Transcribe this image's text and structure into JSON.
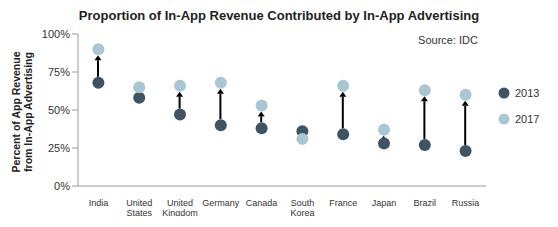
{
  "chart_data": {
    "type": "scatter",
    "title": "Proportion of In-App Revenue Contributed by In-App Advertising",
    "ylabel": "Percent of App Revenue from In-App Advertising",
    "annotations": [
      "Source: IDC"
    ],
    "categories": [
      "India",
      "United States",
      "United Kingdom",
      "Germany",
      "Canada",
      "South Korea",
      "France",
      "Japan",
      "Brazil",
      "Russia"
    ],
    "series": [
      {
        "name": "2013",
        "color": "#3f5463",
        "values": [
          68,
          58,
          47,
          40,
          38,
          36,
          34,
          28,
          27,
          23
        ]
      },
      {
        "name": "2017",
        "color": "#a8c6d4",
        "values": [
          90,
          65,
          66,
          68,
          53,
          31,
          66,
          37,
          63,
          60
        ]
      }
    ],
    "ylim": [
      0,
      100
    ],
    "yticks": [
      {
        "value": 0,
        "label": "0%"
      },
      {
        "value": 25,
        "label": "25%"
      },
      {
        "value": 50,
        "label": "50%"
      },
      {
        "value": 75,
        "label": "75%"
      },
      {
        "value": 100,
        "label": "100%"
      }
    ],
    "grid": false,
    "legend": "right"
  }
}
